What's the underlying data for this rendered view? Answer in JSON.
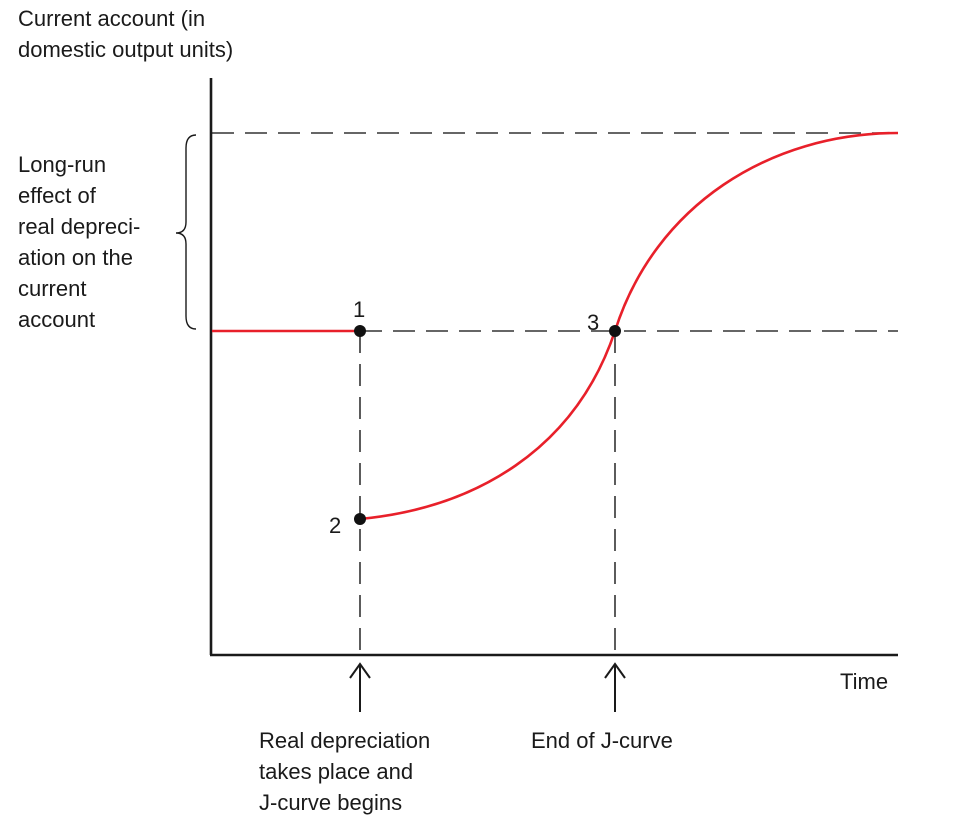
{
  "y_axis_label": [
    "Current account (in",
    "domestic output units)"
  ],
  "x_axis_label": "Time",
  "brace_label": [
    "Long-run",
    "effect of",
    "real depreci-",
    "ation on the",
    "current",
    "account"
  ],
  "points": [
    {
      "label": "1"
    },
    {
      "label": "2"
    },
    {
      "label": "3"
    }
  ],
  "annotations": {
    "depreciation": [
      "Real depreciation",
      "takes place and",
      "J-curve begins"
    ],
    "end": "End of J-curve"
  },
  "colors": {
    "curve": "#e8202a",
    "axis": "#1a1a1a",
    "guide": "#333333"
  }
}
